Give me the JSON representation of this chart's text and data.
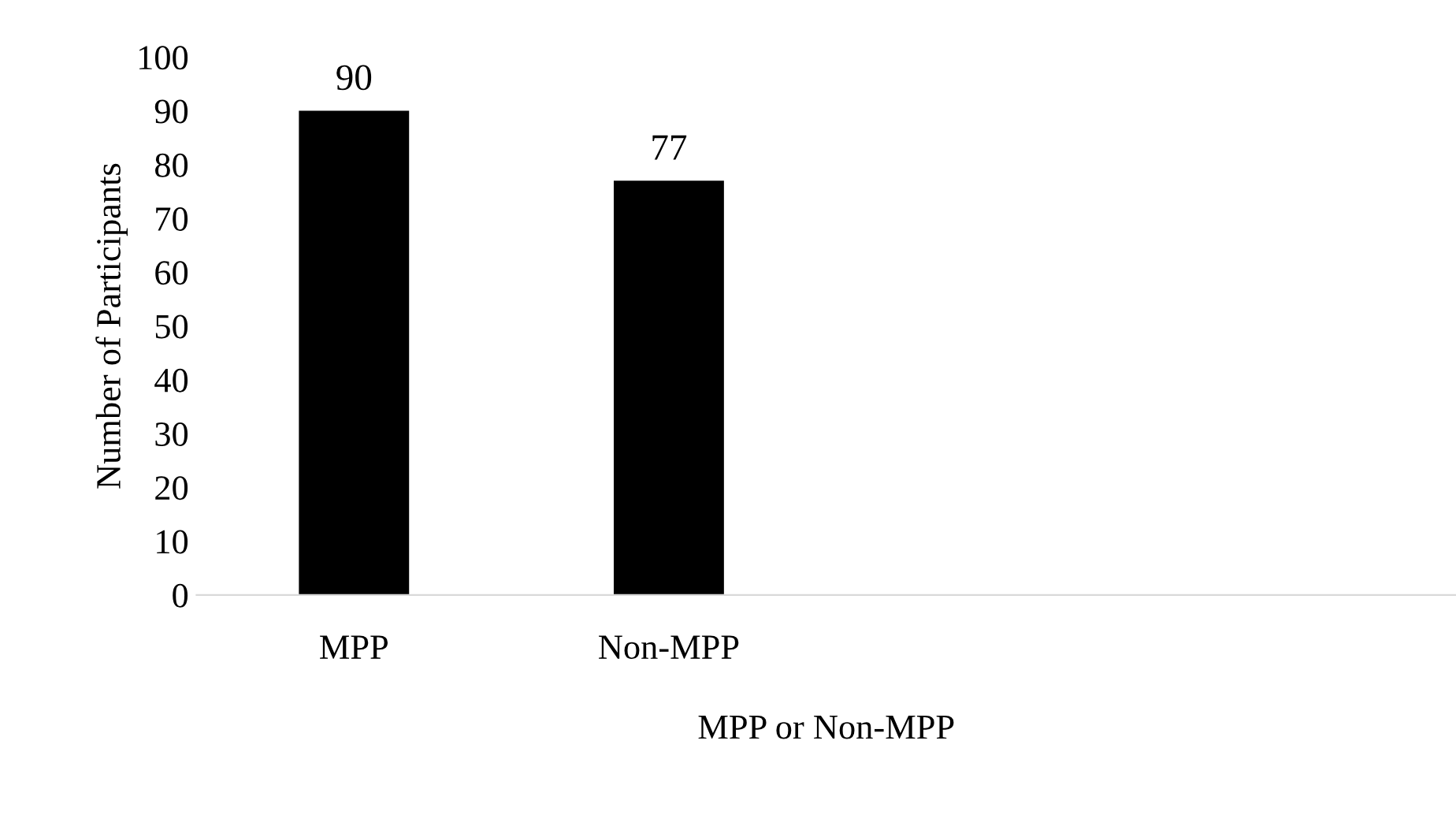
{
  "chart_data": {
    "type": "bar",
    "xlabel": "MPP or Non-MPP",
    "ylabel": "Number of Participants",
    "categories": [
      "MPP",
      "Non-MPP",
      null,
      null
    ],
    "values": [
      90,
      77,
      null,
      null
    ],
    "color": "#000000",
    "ylim": [
      0,
      100
    ],
    "yticks": [
      0,
      10,
      20,
      30,
      40,
      50,
      60,
      70,
      80,
      90,
      100
    ],
    "grid": false,
    "data_labels": true
  }
}
